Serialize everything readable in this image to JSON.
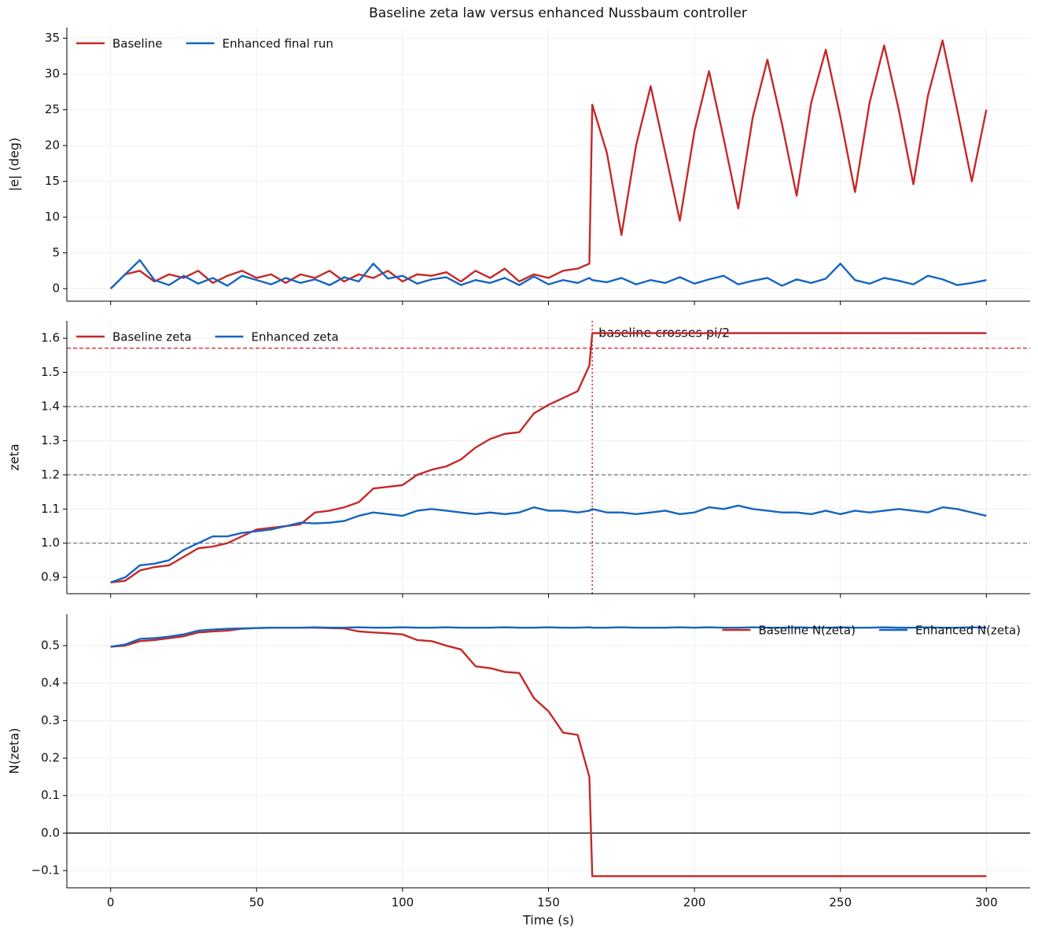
{
  "chart_data": [
    {
      "type": "line",
      "title": "Baseline zeta law versus enhanced Nussbaum controller",
      "ylabel": "|e| (deg)",
      "legend": "upper left",
      "grid": true,
      "xlim": [
        -15,
        315
      ],
      "xticks": [
        0,
        50,
        100,
        150,
        200,
        250,
        300
      ],
      "ylim": [
        -1.75,
        36.5
      ],
      "yticks": [
        0,
        5,
        10,
        15,
        20,
        25,
        30,
        35
      ],
      "x": [
        0,
        5,
        10,
        15,
        20,
        25,
        30,
        35,
        40,
        45,
        50,
        55,
        60,
        65,
        70,
        75,
        80,
        85,
        90,
        95,
        100,
        105,
        110,
        115,
        120,
        125,
        130,
        135,
        140,
        145,
        150,
        155,
        160,
        164,
        165,
        170,
        175,
        180,
        185,
        190,
        195,
        200,
        205,
        210,
        215,
        220,
        225,
        230,
        235,
        240,
        245,
        250,
        255,
        260,
        265,
        270,
        275,
        280,
        285,
        290,
        295,
        300
      ],
      "series": [
        {
          "name": "Baseline",
          "color": "#c62828",
          "values": [
            0,
            2,
            2.5,
            1,
            2,
            1.5,
            2.5,
            0.8,
            1.8,
            2.5,
            1.5,
            2,
            0.8,
            2,
            1.5,
            2.5,
            1,
            2,
            1.5,
            2.5,
            1,
            2,
            1.8,
            2.3,
            1,
            2.5,
            1.5,
            2.8,
            1,
            2,
            1.5,
            2.5,
            2.8,
            3.5,
            25.7,
            19,
            7.5,
            20,
            28.3,
            19,
            9.5,
            22,
            30.4,
            21,
            11.2,
            24,
            32,
            23,
            13,
            26,
            33.4,
            24,
            13.5,
            26,
            34,
            25,
            14.6,
            27,
            34.7,
            25,
            15,
            25
          ]
        },
        {
          "name": "Enhanced final run",
          "color": "#1565c0",
          "values": [
            0,
            2,
            4,
            1.2,
            0.5,
            1.8,
            0.7,
            1.5,
            0.4,
            1.8,
            1.2,
            0.6,
            1.5,
            0.8,
            1.3,
            0.5,
            1.6,
            1,
            3.5,
            1.4,
            1.8,
            0.7,
            1.3,
            1.6,
            0.5,
            1.2,
            0.8,
            1.5,
            0.5,
            1.7,
            0.6,
            1.2,
            0.8,
            1.5,
            1.2,
            0.9,
            1.5,
            0.6,
            1.2,
            0.8,
            1.6,
            0.7,
            1.3,
            1.8,
            0.6,
            1.1,
            1.5,
            0.4,
            1.3,
            0.8,
            1.4,
            3.5,
            1.2,
            0.7,
            1.5,
            1.1,
            0.6,
            1.8,
            1.3,
            0.5,
            0.8,
            1.2
          ]
        }
      ]
    },
    {
      "type": "line",
      "ylabel": "zeta",
      "legend": "upper left",
      "grid": true,
      "xlim": [
        -15,
        315
      ],
      "xticks": [
        0,
        50,
        100,
        150,
        200,
        250,
        300
      ],
      "ylim": [
        0.852,
        1.651
      ],
      "yticks": [
        0.9,
        {
          "value": 1,
          "label": "1.0"
        },
        1.1,
        1.2,
        1.3,
        1.4,
        1.5,
        1.6
      ],
      "reference_lines": [
        1,
        1.2,
        1.4
      ],
      "reference_color": "#777777",
      "threshold": 1.5708,
      "threshold_color": "#d32f2f",
      "event_x": 165,
      "annotation": "baseline crosses pi/2",
      "annotation_color": "#d32f2f",
      "x": [
        0,
        5,
        10,
        15,
        20,
        25,
        30,
        35,
        40,
        45,
        50,
        55,
        60,
        65,
        70,
        75,
        80,
        85,
        90,
        95,
        100,
        105,
        110,
        115,
        120,
        125,
        130,
        135,
        140,
        145,
        150,
        155,
        160,
        164,
        165,
        170,
        175,
        180,
        185,
        190,
        195,
        200,
        205,
        210,
        215,
        220,
        225,
        230,
        235,
        240,
        245,
        250,
        255,
        260,
        265,
        270,
        275,
        280,
        285,
        290,
        295,
        300
      ],
      "series": [
        {
          "name": "Baseline zeta",
          "color": "#c62828",
          "values": [
            0.885,
            0.89,
            0.92,
            0.93,
            0.935,
            0.96,
            0.985,
            0.99,
            1.0,
            1.02,
            1.04,
            1.045,
            1.05,
            1.055,
            1.09,
            1.095,
            1.105,
            1.12,
            1.16,
            1.165,
            1.17,
            1.2,
            1.215,
            1.225,
            1.245,
            1.28,
            1.305,
            1.32,
            1.325,
            1.38,
            1.405,
            1.425,
            1.445,
            1.52,
            1.615,
            1.615,
            1.615,
            1.615,
            1.615,
            1.615,
            1.615,
            1.615,
            1.615,
            1.615,
            1.615,
            1.615,
            1.615,
            1.615,
            1.615,
            1.615,
            1.615,
            1.615,
            1.615,
            1.615,
            1.615,
            1.615,
            1.615,
            1.615,
            1.615,
            1.615,
            1.615,
            1.615
          ]
        },
        {
          "name": "Enhanced zeta",
          "color": "#1565c0",
          "values": [
            0.885,
            0.9,
            0.935,
            0.94,
            0.95,
            0.98,
            1.0,
            1.02,
            1.02,
            1.03,
            1.035,
            1.04,
            1.05,
            1.06,
            1.058,
            1.06,
            1.065,
            1.08,
            1.09,
            1.085,
            1.08,
            1.095,
            1.1,
            1.095,
            1.09,
            1.085,
            1.09,
            1.085,
            1.09,
            1.105,
            1.095,
            1.095,
            1.09,
            1.095,
            1.1,
            1.09,
            1.09,
            1.085,
            1.09,
            1.095,
            1.085,
            1.09,
            1.105,
            1.1,
            1.11,
            1.1,
            1.095,
            1.09,
            1.09,
            1.085,
            1.095,
            1.085,
            1.095,
            1.09,
            1.095,
            1.1,
            1.095,
            1.09,
            1.105,
            1.1,
            1.09,
            1.08
          ]
        }
      ]
    },
    {
      "type": "line",
      "ylabel": "N(zeta)",
      "xlabel": "Time (s)",
      "legend": "upper right",
      "grid": true,
      "zero_line": true,
      "xlim": [
        -15,
        315
      ],
      "xticks": [
        0,
        50,
        100,
        150,
        200,
        250,
        300
      ],
      "ylim": [
        -0.146,
        0.584
      ],
      "yticks": [
        {
          "value": -0.1,
          "label": "−0.1"
        },
        {
          "value": 0,
          "label": "0.0"
        },
        0.1,
        0.2,
        0.3,
        0.4,
        0.5
      ],
      "x": [
        0,
        5,
        10,
        15,
        20,
        25,
        30,
        35,
        40,
        45,
        50,
        55,
        60,
        65,
        70,
        75,
        80,
        85,
        90,
        95,
        100,
        105,
        110,
        115,
        120,
        125,
        130,
        135,
        140,
        145,
        150,
        155,
        160,
        164,
        165,
        170,
        175,
        180,
        185,
        190,
        195,
        200,
        205,
        210,
        215,
        220,
        225,
        230,
        235,
        240,
        245,
        250,
        255,
        260,
        265,
        270,
        275,
        280,
        285,
        290,
        295,
        300
      ],
      "series": [
        {
          "name": "Baseline N(zeta)",
          "color": "#c62828",
          "values": [
            0.497,
            0.5,
            0.512,
            0.515,
            0.52,
            0.525,
            0.535,
            0.538,
            0.54,
            0.545,
            0.547,
            0.548,
            0.548,
            0.548,
            0.548,
            0.547,
            0.546,
            0.538,
            0.535,
            0.533,
            0.53,
            0.515,
            0.512,
            0.5,
            0.49,
            0.445,
            0.44,
            0.43,
            0.427,
            0.36,
            0.325,
            0.268,
            0.262,
            0.15,
            -0.115,
            -0.115,
            -0.115,
            -0.115,
            -0.115,
            -0.115,
            -0.115,
            -0.115,
            -0.115,
            -0.115,
            -0.115,
            -0.115,
            -0.115,
            -0.115,
            -0.115,
            -0.115,
            -0.115,
            -0.115,
            -0.115,
            -0.115,
            -0.115,
            -0.115,
            -0.115,
            -0.115,
            -0.115,
            -0.115,
            -0.115,
            -0.115
          ]
        },
        {
          "name": "Enhanced N(zeta)",
          "color": "#1565c0",
          "values": [
            0.497,
            0.503,
            0.518,
            0.52,
            0.524,
            0.53,
            0.54,
            0.543,
            0.545,
            0.546,
            0.547,
            0.548,
            0.548,
            0.548,
            0.549,
            0.548,
            0.548,
            0.549,
            0.548,
            0.548,
            0.549,
            0.548,
            0.548,
            0.549,
            0.548,
            0.548,
            0.548,
            0.549,
            0.548,
            0.548,
            0.549,
            0.548,
            0.548,
            0.549,
            0.548,
            0.548,
            0.549,
            0.548,
            0.548,
            0.548,
            0.549,
            0.548,
            0.549,
            0.548,
            0.548,
            0.549,
            0.548,
            0.548,
            0.549,
            0.548,
            0.548,
            0.549,
            0.548,
            0.548,
            0.549,
            0.548,
            0.548,
            0.549,
            0.548,
            0.548,
            0.549,
            0.548
          ]
        }
      ]
    }
  ]
}
